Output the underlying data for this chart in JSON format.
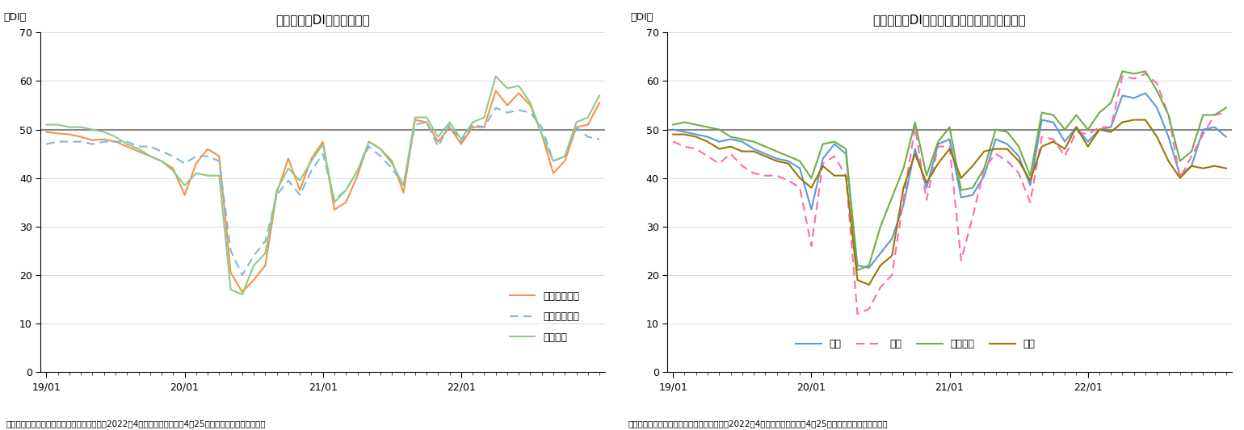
{
  "title1": "先行き判断DIの内訳の推移",
  "title2": "先行き判断DI（家計動向関連）の内訳の推移",
  "ylabel": "（DI）",
  "caption": "（出所）内閣府「景気ウォッチャー調査」（2022年4月調査、調査期間：4月25日から月末、季節調整値）",
  "ylim": [
    0,
    70
  ],
  "yticks": [
    0,
    10,
    20,
    30,
    40,
    50,
    60,
    70
  ],
  "reference_line": 50,
  "xtick_labels": [
    "19/01",
    "20/01",
    "21/01",
    "22/01"
  ],
  "xtick_positions": [
    0,
    12,
    24,
    36
  ],
  "chart1": {
    "legend": [
      "家計動向関連",
      "企業動向関連",
      "雇用関連"
    ],
    "colors": [
      "#F4924B",
      "#7EB7E0",
      "#8EC98A"
    ],
    "linestyles": [
      "-",
      "--",
      "-"
    ],
    "series": {
      "家計動向関連": [
        49.5,
        49.2,
        49.0,
        48.5,
        47.8,
        48.0,
        47.5,
        46.5,
        45.5,
        44.5,
        43.5,
        42.0,
        36.5,
        43.0,
        46.0,
        44.5,
        20.5,
        16.5,
        19.0,
        22.0,
        37.0,
        44.0,
        37.5,
        44.0,
        47.5,
        33.5,
        35.0,
        40.5,
        47.5,
        46.0,
        43.5,
        37.0,
        52.0,
        51.5,
        47.5,
        50.5,
        47.0,
        50.5,
        50.5,
        58.0,
        55.0,
        57.5,
        55.0,
        49.0,
        41.0,
        43.5,
        50.5,
        51.0,
        55.5
      ],
      "企業動向関連": [
        47.0,
        47.5,
        47.5,
        47.5,
        47.0,
        47.5,
        47.5,
        47.5,
        46.5,
        46.5,
        45.5,
        44.5,
        43.0,
        44.5,
        44.5,
        43.5,
        25.0,
        20.0,
        24.0,
        27.0,
        36.5,
        39.5,
        36.5,
        41.5,
        45.0,
        35.5,
        37.5,
        41.5,
        46.5,
        44.5,
        42.0,
        38.5,
        51.0,
        51.5,
        46.5,
        51.0,
        47.5,
        51.0,
        50.5,
        54.5,
        53.5,
        54.0,
        53.5,
        50.5,
        43.5,
        44.5,
        50.5,
        48.5,
        48.0
      ],
      "雇用関連": [
        51.0,
        51.0,
        50.5,
        50.5,
        50.0,
        49.5,
        48.5,
        47.0,
        46.0,
        44.5,
        43.5,
        41.5,
        38.5,
        41.0,
        40.5,
        40.5,
        17.0,
        16.0,
        22.0,
        24.5,
        37.5,
        42.0,
        39.5,
        43.5,
        47.0,
        35.0,
        37.5,
        41.5,
        47.5,
        46.0,
        43.0,
        38.5,
        52.5,
        52.5,
        48.5,
        51.5,
        48.0,
        51.5,
        52.5,
        61.0,
        58.5,
        59.0,
        55.5,
        49.0,
        43.5,
        44.5,
        51.5,
        52.5,
        57.0
      ]
    }
  },
  "chart2": {
    "legend": [
      "小売",
      "飲食",
      "サービス",
      "住宅"
    ],
    "colors": [
      "#5B9BD5",
      "#FF69B4",
      "#70AD47",
      "#997700"
    ],
    "linestyles": [
      "-",
      "--",
      "-",
      "-"
    ],
    "series": {
      "小売": [
        50.0,
        49.5,
        49.0,
        48.5,
        47.5,
        48.0,
        47.5,
        46.0,
        45.0,
        44.0,
        43.5,
        42.0,
        33.5,
        44.0,
        47.0,
        45.0,
        22.0,
        21.5,
        24.5,
        27.5,
        34.5,
        46.0,
        38.0,
        47.0,
        48.0,
        36.0,
        36.5,
        40.5,
        48.0,
        47.0,
        44.5,
        38.5,
        52.0,
        51.5,
        47.5,
        50.5,
        47.5,
        50.0,
        50.5,
        57.0,
        56.5,
        57.5,
        54.5,
        48.5,
        40.5,
        42.5,
        50.0,
        50.5,
        48.5
      ],
      "飲食": [
        47.5,
        46.5,
        46.0,
        44.5,
        43.0,
        45.0,
        42.5,
        41.0,
        40.5,
        40.5,
        39.5,
        38.0,
        26.0,
        43.0,
        44.5,
        40.5,
        12.0,
        13.0,
        17.5,
        20.0,
        35.5,
        50.5,
        35.5,
        46.5,
        46.5,
        23.0,
        32.0,
        42.0,
        45.0,
        43.5,
        41.0,
        35.0,
        48.5,
        48.0,
        44.5,
        49.5,
        49.0,
        50.5,
        50.5,
        61.0,
        60.5,
        61.5,
        59.5,
        53.0,
        40.0,
        44.5,
        49.0,
        53.0,
        53.5
      ],
      "サービス": [
        51.0,
        51.5,
        51.0,
        50.5,
        50.0,
        48.5,
        48.0,
        47.5,
        46.5,
        45.5,
        44.5,
        43.5,
        40.0,
        47.0,
        47.5,
        46.0,
        21.0,
        22.0,
        30.0,
        36.0,
        42.0,
        51.5,
        40.5,
        47.5,
        50.5,
        37.5,
        38.0,
        42.0,
        50.0,
        49.5,
        46.5,
        40.5,
        53.5,
        53.0,
        50.0,
        53.0,
        50.0,
        53.5,
        55.5,
        62.0,
        61.5,
        62.0,
        58.0,
        53.0,
        43.5,
        45.5,
        53.0,
        53.0,
        54.5
      ],
      "住宅": [
        49.0,
        49.0,
        48.5,
        47.5,
        46.0,
        46.5,
        45.5,
        45.5,
        44.5,
        43.5,
        43.0,
        40.0,
        38.0,
        42.5,
        40.5,
        40.5,
        19.0,
        18.0,
        22.0,
        24.0,
        38.0,
        45.0,
        39.0,
        43.0,
        46.0,
        40.0,
        42.5,
        45.5,
        46.0,
        46.0,
        43.5,
        39.5,
        46.5,
        47.5,
        46.0,
        50.5,
        46.5,
        50.0,
        49.5,
        51.5,
        52.0,
        52.0,
        48.5,
        43.5,
        40.0,
        42.5,
        42.0,
        42.5,
        42.0
      ]
    }
  }
}
